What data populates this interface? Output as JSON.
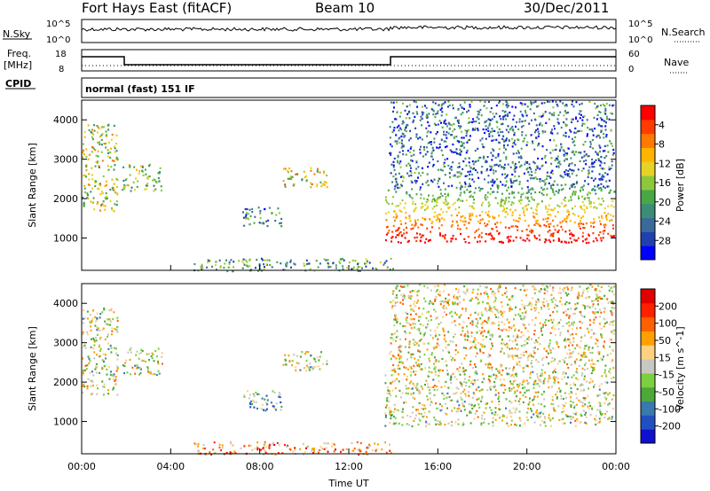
{
  "header": {
    "station": "Fort Hays East (fitACF)",
    "beam": "Beam 10",
    "date": "30/Dec/2011"
  },
  "top_panel": {
    "left_label_1": "N.Sky",
    "left_tick_1": "10^5",
    "left_tick_2": "10^0",
    "right_label_1": "N.Search",
    "right_tick_1": "10^5",
    "right_tick_2": "10^0",
    "left_label_2": "Freq.",
    "left_label_2b": "[MHz]",
    "left_tick_3": "18",
    "left_tick_4": "8",
    "right_label_2": "Nave",
    "right_tick_3": "60",
    "right_tick_4": "0",
    "cpid_label": "CPID",
    "cpid_text": "normal (fast) 151 IF"
  },
  "colors": {
    "power_scale": [
      "#0000ff",
      "#2040b0",
      "#3a6a9a",
      "#3c8c78",
      "#48a848",
      "#8cc83c",
      "#e6d228",
      "#ffb400",
      "#ff7800",
      "#ff3c00",
      "#ff0000"
    ],
    "velocity_scale": [
      "#1010d0",
      "#2050c0",
      "#3a78b0",
      "#4ca838",
      "#7cd040",
      "#c8c8c0",
      "#ffd080",
      "#ffa000",
      "#ff6000",
      "#ff2000",
      "#e00000"
    ]
  },
  "chart_data": [
    {
      "type": "heatmap",
      "name_ref": "power",
      "xlabel": "Time UT",
      "ylabel": "Slant Range [km]",
      "x_ticks": [
        "00:00",
        "04:00",
        "08:00",
        "12:00",
        "16:00",
        "20:00",
        "00:00"
      ],
      "x_range_hours": [
        0,
        24
      ],
      "y_ticks": [
        "1000",
        "2000",
        "3000",
        "4000"
      ],
      "y_tick_values": [
        1000,
        2000,
        3000,
        4000
      ],
      "ylim": [
        180,
        4500
      ],
      "colorbar_label": "Power [dB]",
      "colorbar_ticks": [
        "4",
        "8",
        "12",
        "16",
        "20",
        "24",
        "28"
      ],
      "colorbar_range": [
        0,
        32
      ],
      "scatter_regions": [
        {
          "t0": 0.0,
          "t1": 1.6,
          "r0": 1700,
          "r1": 3900,
          "level": 0.55
        },
        {
          "t0": 1.8,
          "t1": 3.6,
          "r0": 2200,
          "r1": 2900,
          "level": 0.45
        },
        {
          "t0": 7.2,
          "t1": 9.0,
          "r0": 1300,
          "r1": 1800,
          "level": 0.3
        },
        {
          "t0": 9.0,
          "t1": 11.0,
          "r0": 2300,
          "r1": 2800,
          "level": 0.6
        },
        {
          "t0": 5.0,
          "t1": 14.0,
          "r0": 180,
          "r1": 500,
          "level": 0.35
        },
        {
          "t0": 13.6,
          "t1": 23.9,
          "r0": 900,
          "r1": 2300,
          "level": 0.8
        },
        {
          "t0": 13.8,
          "t1": 23.9,
          "r0": 2300,
          "r1": 4500,
          "level": 0.25
        }
      ]
    },
    {
      "type": "heatmap",
      "name_ref": "velocity",
      "xlabel": "Time UT",
      "ylabel": "Slant Range [km]",
      "x_ticks": [
        "00:00",
        "04:00",
        "08:00",
        "12:00",
        "16:00",
        "20:00",
        "00:00"
      ],
      "x_range_hours": [
        0,
        24
      ],
      "y_ticks": [
        "1000",
        "2000",
        "3000",
        "4000"
      ],
      "y_tick_values": [
        1000,
        2000,
        3000,
        4000
      ],
      "ylim": [
        180,
        4500
      ],
      "colorbar_label": "Velocity [m s^-1]",
      "colorbar_ticks": [
        "200",
        "100",
        "50",
        "15",
        "-15",
        "-50",
        "-100",
        "-200"
      ],
      "scatter_regions": [
        {
          "t0": 0.0,
          "t1": 1.6,
          "r0": 1700,
          "r1": 3900,
          "level": 0.5
        },
        {
          "t0": 1.8,
          "t1": 3.6,
          "r0": 2200,
          "r1": 2900,
          "level": 0.5
        },
        {
          "t0": 7.2,
          "t1": 9.0,
          "r0": 1300,
          "r1": 1800,
          "level": 0.35
        },
        {
          "t0": 9.0,
          "t1": 11.0,
          "r0": 2300,
          "r1": 2800,
          "level": 0.5
        },
        {
          "t0": 5.0,
          "t1": 14.0,
          "r0": 180,
          "r1": 500,
          "level": 0.7
        },
        {
          "t0": 13.6,
          "t1": 23.9,
          "r0": 900,
          "r1": 2300,
          "level": 0.5
        },
        {
          "t0": 13.8,
          "t1": 23.9,
          "r0": 2300,
          "r1": 4500,
          "level": 0.55
        }
      ]
    }
  ]
}
